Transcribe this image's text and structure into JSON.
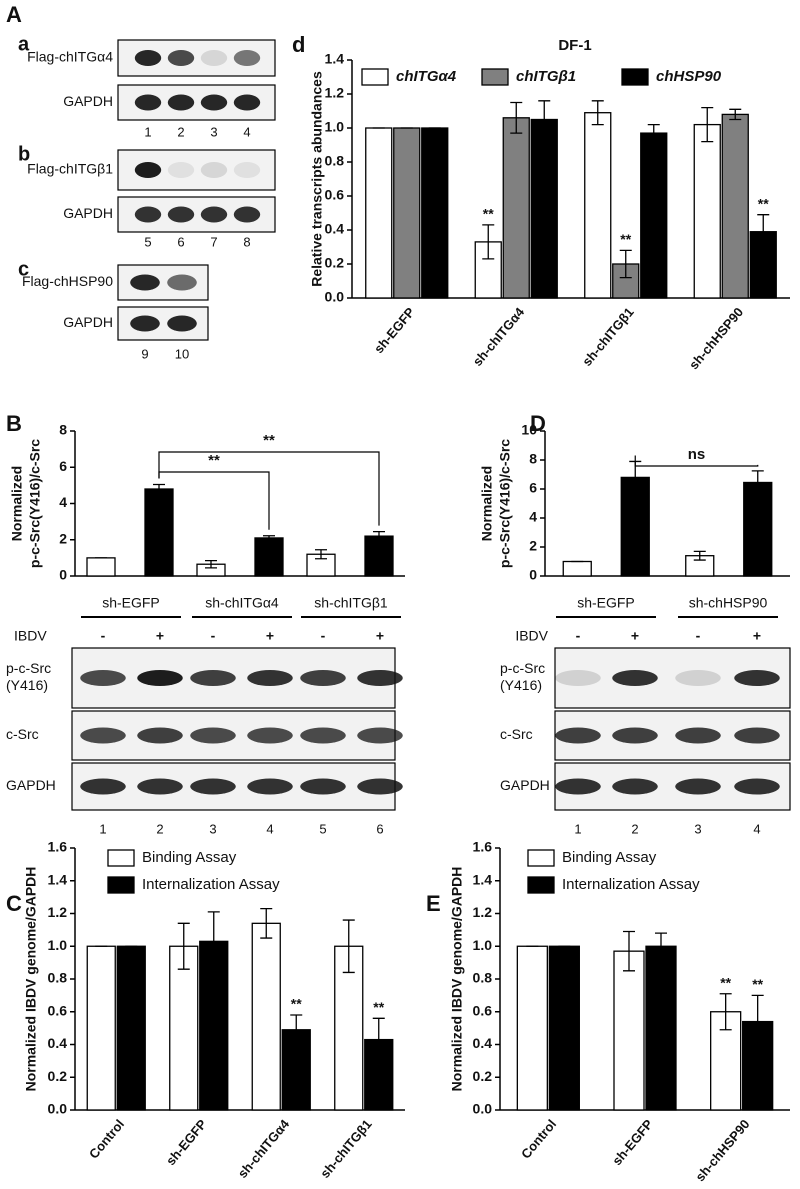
{
  "figure_label": "A",
  "chart_data": [
    {
      "type": "bar",
      "panel": "d",
      "title": "DF-1",
      "ylabel": [
        "Relative transcripts abundances"
      ],
      "categories": [
        "sh-EGFP",
        "sh-chITGα4",
        "sh-chITGβ1",
        "sh-chHSP90"
      ],
      "series": [
        {
          "name": "chITGα4",
          "color": "#ffffff",
          "values": [
            1.0,
            0.33,
            1.09,
            1.02
          ],
          "errors": [
            0,
            0.1,
            0.07,
            0.1
          ],
          "value_annotations": [
            null,
            "**",
            null,
            null
          ]
        },
        {
          "name": "chITGβ1",
          "color": "#808080",
          "values": [
            1.0,
            1.06,
            0.2,
            1.08
          ],
          "errors": [
            0,
            0.09,
            0.08,
            0.03
          ],
          "value_annotations": [
            null,
            null,
            "**",
            null
          ]
        },
        {
          "name": "chHSP90",
          "color": "#000000",
          "values": [
            1.0,
            1.05,
            0.97,
            0.39
          ],
          "errors": [
            0,
            0.11,
            0.05,
            0.1
          ],
          "value_annotations": [
            null,
            null,
            null,
            "**"
          ]
        }
      ],
      "ylim": [
        0,
        1.4
      ],
      "yticks": [
        {
          "value": 0,
          "label": "0.0"
        },
        {
          "value": 0.2,
          "label": "0.2"
        },
        {
          "value": 0.4,
          "label": "0.4"
        },
        {
          "value": 0.6,
          "label": "0.6"
        },
        {
          "value": 0.8,
          "label": "0.8"
        },
        {
          "value": 1,
          "label": "1.0"
        },
        {
          "value": 1.2,
          "label": "1.2"
        },
        {
          "value": 1.4,
          "label": "1.4"
        }
      ]
    },
    {
      "type": "bar",
      "panel": "B",
      "ylabel": [
        "Normalized",
        "p-c-Src(Y416)/c-Src"
      ],
      "categories": [
        null,
        null,
        null
      ],
      "series": [
        {
          "color": "#ffffff",
          "values": [
            1.0,
            0.65,
            1.2
          ],
          "errors": [
            0,
            0.2,
            0.25
          ]
        },
        {
          "color": "#000000",
          "values": [
            4.8,
            2.1,
            2.2
          ],
          "errors": [
            0.25,
            0.12,
            0.25
          ]
        }
      ],
      "ylim": [
        0,
        8
      ],
      "yticks": [
        0,
        2,
        4,
        6,
        8
      ],
      "annotations": [
        "**",
        "**"
      ]
    },
    {
      "type": "bar",
      "panel": "D",
      "ylabel": [
        "Normalized",
        "p-c-Src(Y416)/c-Src"
      ],
      "categories": [
        null,
        null
      ],
      "series": [
        {
          "color": "#ffffff",
          "values": [
            1.0,
            1.4
          ],
          "errors": [
            0,
            0.3
          ]
        },
        {
          "color": "#000000",
          "values": [
            6.8,
            6.45
          ],
          "errors": [
            1.1,
            0.8
          ]
        }
      ],
      "ylim": [
        0,
        10
      ],
      "yticks": [
        0,
        2,
        4,
        6,
        8,
        10
      ],
      "annotations": [
        "ns"
      ]
    },
    {
      "type": "bar",
      "panel": "C",
      "ylabel": [
        "Normalized IBDV genome/GAPDH"
      ],
      "categories": [
        "Control",
        "sh-EGFP",
        "sh-chITGα4",
        "sh-chITGβ1"
      ],
      "series": [
        {
          "name": "Binding Assay",
          "color": "#ffffff",
          "values": [
            1.0,
            1.0,
            1.14,
            1.0
          ],
          "errors": [
            0,
            0.14,
            0.09,
            0.16
          ]
        },
        {
          "name": "Internalization Assay",
          "color": "#000000",
          "values": [
            1.0,
            1.03,
            0.49,
            0.43
          ],
          "errors": [
            0,
            0.18,
            0.09,
            0.13
          ],
          "value_annotations": [
            null,
            null,
            "**",
            "**"
          ]
        }
      ],
      "ylim": [
        0,
        1.6
      ],
      "yticks": [
        {
          "value": 0,
          "label": "0.0"
        },
        {
          "value": 0.2,
          "label": "0.2"
        },
        {
          "value": 0.4,
          "label": "0.4"
        },
        {
          "value": 0.6,
          "label": "0.6"
        },
        {
          "value": 0.8,
          "label": "0.8"
        },
        {
          "value": 1,
          "label": "1.0"
        },
        {
          "value": 1.2,
          "label": "1.2"
        },
        {
          "value": 1.4,
          "label": "1.4"
        },
        {
          "value": 1.6,
          "label": "1.6"
        }
      ]
    },
    {
      "type": "bar",
      "panel": "E",
      "ylabel": [
        "Normalized IBDV genome/GAPDH"
      ],
      "categories": [
        "Control",
        "sh-EGFP",
        "sh-chHSP90"
      ],
      "series": [
        {
          "name": "Binding Assay",
          "color": "#ffffff",
          "values": [
            1.0,
            0.97,
            0.6
          ],
          "errors": [
            0,
            0.12,
            0.11
          ],
          "value_annotations": [
            null,
            null,
            "**"
          ]
        },
        {
          "name": "Internalization Assay",
          "color": "#000000",
          "values": [
            1.0,
            1.0,
            0.54
          ],
          "errors": [
            0,
            0.08,
            0.16
          ],
          "value_annotations": [
            null,
            null,
            "**"
          ]
        }
      ],
      "ylim": [
        0,
        1.6
      ],
      "yticks": [
        {
          "value": 0,
          "label": "0.0"
        },
        {
          "value": 0.2,
          "label": "0.2"
        },
        {
          "value": 0.4,
          "label": "0.4"
        },
        {
          "value": 0.6,
          "label": "0.6"
        },
        {
          "value": 0.8,
          "label": "0.8"
        },
        {
          "value": 1,
          "label": "1.0"
        },
        {
          "value": 1.2,
          "label": "1.2"
        },
        {
          "value": 1.4,
          "label": "1.4"
        },
        {
          "value": 1.6,
          "label": "1.6"
        }
      ]
    }
  ],
  "blots": [
    {
      "label": "a",
      "rows": [
        [
          "Flag-chITGα4"
        ],
        [
          "GAPDH"
        ]
      ],
      "lanes": [
        "1",
        "2",
        "3",
        "4"
      ]
    },
    {
      "label": "b",
      "rows": [
        [
          "Flag-chITGβ1"
        ],
        [
          "GAPDH"
        ]
      ],
      "lanes": [
        "5",
        "6",
        "7",
        "8"
      ]
    },
    {
      "label": "c",
      "rows": [
        [
          "Flag-chHSP90"
        ],
        [
          "GAPDH"
        ]
      ],
      "lanes": [
        "9",
        "10"
      ]
    },
    {
      "groups": [
        "sh-EGFP",
        "sh-chITGα4",
        "sh-chITGβ1"
      ],
      "treatment": "IBDV",
      "signs": [
        "-",
        "+",
        "-",
        "+",
        "-",
        "+"
      ],
      "rows": [
        [
          "p-c-Src",
          "(Y416)"
        ],
        [
          "c-Src"
        ],
        [
          "GAPDH"
        ]
      ],
      "lanes": [
        "1",
        "2",
        "3",
        "4",
        "5",
        "6"
      ]
    },
    {
      "groups": [
        "sh-EGFP",
        "sh-chHSP90"
      ],
      "treatment": "IBDV",
      "signs": [
        "-",
        "+",
        "-",
        "+"
      ],
      "rows": [
        [
          "p-c-Src",
          "(Y416)"
        ],
        [
          "c-Src"
        ],
        [
          "GAPDH"
        ]
      ],
      "lanes": [
        "1",
        "2",
        "3",
        "4"
      ]
    }
  ]
}
